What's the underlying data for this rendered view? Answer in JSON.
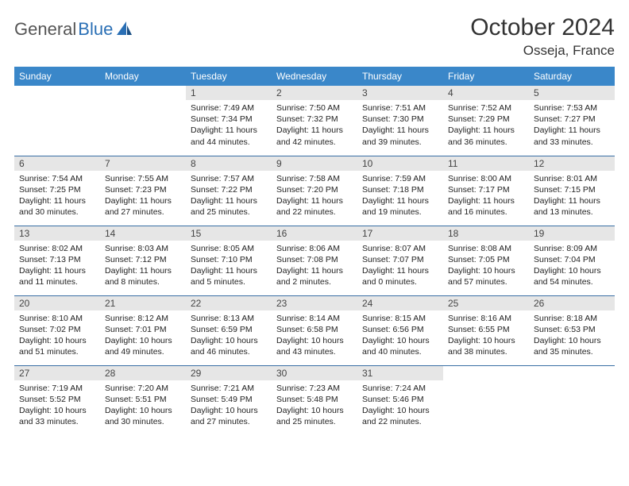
{
  "brand": {
    "first": "General",
    "second": "Blue"
  },
  "title": "October 2024",
  "location": "Osseja, France",
  "colors": {
    "header_bg": "#3a87c9",
    "header_text": "#ffffff",
    "cell_border": "#3a6fa5",
    "daybar_bg": "#e6e6e6",
    "brand_blue": "#2a6fb5",
    "brand_gray": "#555555"
  },
  "weekdays": [
    "Sunday",
    "Monday",
    "Tuesday",
    "Wednesday",
    "Thursday",
    "Friday",
    "Saturday"
  ],
  "weeks": [
    [
      {
        "empty": true
      },
      {
        "empty": true
      },
      {
        "day": "1",
        "sunrise": "Sunrise: 7:49 AM",
        "sunset": "Sunset: 7:34 PM",
        "daylight": "Daylight: 11 hours and 44 minutes."
      },
      {
        "day": "2",
        "sunrise": "Sunrise: 7:50 AM",
        "sunset": "Sunset: 7:32 PM",
        "daylight": "Daylight: 11 hours and 42 minutes."
      },
      {
        "day": "3",
        "sunrise": "Sunrise: 7:51 AM",
        "sunset": "Sunset: 7:30 PM",
        "daylight": "Daylight: 11 hours and 39 minutes."
      },
      {
        "day": "4",
        "sunrise": "Sunrise: 7:52 AM",
        "sunset": "Sunset: 7:29 PM",
        "daylight": "Daylight: 11 hours and 36 minutes."
      },
      {
        "day": "5",
        "sunrise": "Sunrise: 7:53 AM",
        "sunset": "Sunset: 7:27 PM",
        "daylight": "Daylight: 11 hours and 33 minutes."
      }
    ],
    [
      {
        "day": "6",
        "sunrise": "Sunrise: 7:54 AM",
        "sunset": "Sunset: 7:25 PM",
        "daylight": "Daylight: 11 hours and 30 minutes."
      },
      {
        "day": "7",
        "sunrise": "Sunrise: 7:55 AM",
        "sunset": "Sunset: 7:23 PM",
        "daylight": "Daylight: 11 hours and 27 minutes."
      },
      {
        "day": "8",
        "sunrise": "Sunrise: 7:57 AM",
        "sunset": "Sunset: 7:22 PM",
        "daylight": "Daylight: 11 hours and 25 minutes."
      },
      {
        "day": "9",
        "sunrise": "Sunrise: 7:58 AM",
        "sunset": "Sunset: 7:20 PM",
        "daylight": "Daylight: 11 hours and 22 minutes."
      },
      {
        "day": "10",
        "sunrise": "Sunrise: 7:59 AM",
        "sunset": "Sunset: 7:18 PM",
        "daylight": "Daylight: 11 hours and 19 minutes."
      },
      {
        "day": "11",
        "sunrise": "Sunrise: 8:00 AM",
        "sunset": "Sunset: 7:17 PM",
        "daylight": "Daylight: 11 hours and 16 minutes."
      },
      {
        "day": "12",
        "sunrise": "Sunrise: 8:01 AM",
        "sunset": "Sunset: 7:15 PM",
        "daylight": "Daylight: 11 hours and 13 minutes."
      }
    ],
    [
      {
        "day": "13",
        "sunrise": "Sunrise: 8:02 AM",
        "sunset": "Sunset: 7:13 PM",
        "daylight": "Daylight: 11 hours and 11 minutes."
      },
      {
        "day": "14",
        "sunrise": "Sunrise: 8:03 AM",
        "sunset": "Sunset: 7:12 PM",
        "daylight": "Daylight: 11 hours and 8 minutes."
      },
      {
        "day": "15",
        "sunrise": "Sunrise: 8:05 AM",
        "sunset": "Sunset: 7:10 PM",
        "daylight": "Daylight: 11 hours and 5 minutes."
      },
      {
        "day": "16",
        "sunrise": "Sunrise: 8:06 AM",
        "sunset": "Sunset: 7:08 PM",
        "daylight": "Daylight: 11 hours and 2 minutes."
      },
      {
        "day": "17",
        "sunrise": "Sunrise: 8:07 AM",
        "sunset": "Sunset: 7:07 PM",
        "daylight": "Daylight: 11 hours and 0 minutes."
      },
      {
        "day": "18",
        "sunrise": "Sunrise: 8:08 AM",
        "sunset": "Sunset: 7:05 PM",
        "daylight": "Daylight: 10 hours and 57 minutes."
      },
      {
        "day": "19",
        "sunrise": "Sunrise: 8:09 AM",
        "sunset": "Sunset: 7:04 PM",
        "daylight": "Daylight: 10 hours and 54 minutes."
      }
    ],
    [
      {
        "day": "20",
        "sunrise": "Sunrise: 8:10 AM",
        "sunset": "Sunset: 7:02 PM",
        "daylight": "Daylight: 10 hours and 51 minutes."
      },
      {
        "day": "21",
        "sunrise": "Sunrise: 8:12 AM",
        "sunset": "Sunset: 7:01 PM",
        "daylight": "Daylight: 10 hours and 49 minutes."
      },
      {
        "day": "22",
        "sunrise": "Sunrise: 8:13 AM",
        "sunset": "Sunset: 6:59 PM",
        "daylight": "Daylight: 10 hours and 46 minutes."
      },
      {
        "day": "23",
        "sunrise": "Sunrise: 8:14 AM",
        "sunset": "Sunset: 6:58 PM",
        "daylight": "Daylight: 10 hours and 43 minutes."
      },
      {
        "day": "24",
        "sunrise": "Sunrise: 8:15 AM",
        "sunset": "Sunset: 6:56 PM",
        "daylight": "Daylight: 10 hours and 40 minutes."
      },
      {
        "day": "25",
        "sunrise": "Sunrise: 8:16 AM",
        "sunset": "Sunset: 6:55 PM",
        "daylight": "Daylight: 10 hours and 38 minutes."
      },
      {
        "day": "26",
        "sunrise": "Sunrise: 8:18 AM",
        "sunset": "Sunset: 6:53 PM",
        "daylight": "Daylight: 10 hours and 35 minutes."
      }
    ],
    [
      {
        "day": "27",
        "sunrise": "Sunrise: 7:19 AM",
        "sunset": "Sunset: 5:52 PM",
        "daylight": "Daylight: 10 hours and 33 minutes."
      },
      {
        "day": "28",
        "sunrise": "Sunrise: 7:20 AM",
        "sunset": "Sunset: 5:51 PM",
        "daylight": "Daylight: 10 hours and 30 minutes."
      },
      {
        "day": "29",
        "sunrise": "Sunrise: 7:21 AM",
        "sunset": "Sunset: 5:49 PM",
        "daylight": "Daylight: 10 hours and 27 minutes."
      },
      {
        "day": "30",
        "sunrise": "Sunrise: 7:23 AM",
        "sunset": "Sunset: 5:48 PM",
        "daylight": "Daylight: 10 hours and 25 minutes."
      },
      {
        "day": "31",
        "sunrise": "Sunrise: 7:24 AM",
        "sunset": "Sunset: 5:46 PM",
        "daylight": "Daylight: 10 hours and 22 minutes."
      },
      {
        "empty": true
      },
      {
        "empty": true
      }
    ]
  ]
}
